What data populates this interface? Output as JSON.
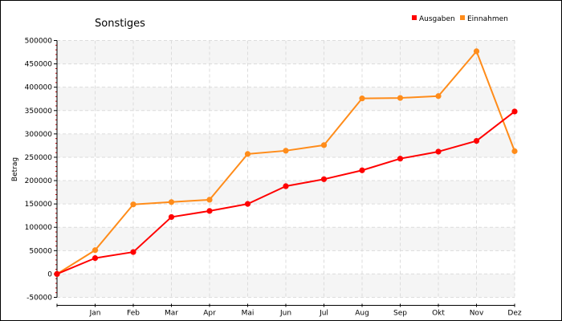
{
  "chart_data": {
    "type": "line",
    "title": "Sonstiges",
    "xlabel": "",
    "ylabel": "Betrag",
    "categories": [
      "",
      "Jan",
      "Feb",
      "Mar",
      "Apr",
      "Mai",
      "Jun",
      "Jul",
      "Aug",
      "Sep",
      "Okt",
      "Nov",
      "Dez"
    ],
    "ylim": [
      -50000,
      500000
    ],
    "yticks": [
      -50000,
      0,
      50000,
      100000,
      150000,
      200000,
      250000,
      300000,
      350000,
      400000,
      450000,
      500000
    ],
    "grid": true,
    "legend_position": "top-right",
    "series": [
      {
        "name": "Ausgaben",
        "color": "#ff0000",
        "values": [
          0,
          34000,
          47000,
          122000,
          135000,
          150000,
          188000,
          203000,
          222000,
          247000,
          262000,
          285000,
          348000
        ]
      },
      {
        "name": "Einnahmen",
        "color": "#ff8c1a",
        "values": [
          0,
          51000,
          149000,
          154000,
          159000,
          257000,
          264000,
          276000,
          376000,
          377000,
          381000,
          477000,
          263000
        ]
      }
    ]
  }
}
